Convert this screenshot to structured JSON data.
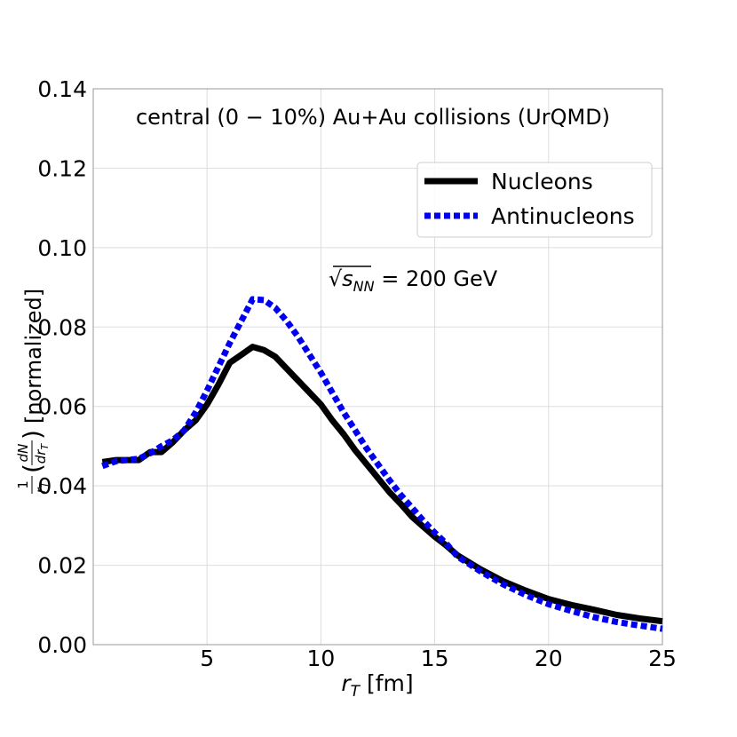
{
  "chart_data": {
    "type": "line",
    "title": "central (0 − 10%) Au+Au collisions (UrQMD)",
    "energy_prefix": "√",
    "energy_var": "s",
    "energy_sub": "NN",
    "energy_rest": " = 200 GeV",
    "xlabel_var": "r",
    "xlabel_sub": "T",
    "xlabel_unit": " [fm]",
    "ylabel": "(1/r_T)(dN/dr_T) [normalized]",
    "ylabel_suffix": "[normalized]",
    "xlim": [
      0,
      25
    ],
    "ylim": [
      0,
      0.14
    ],
    "x_ticks": [
      5,
      10,
      15,
      20,
      25
    ],
    "y_ticks": [
      0.0,
      0.02,
      0.04,
      0.06,
      0.08,
      0.1,
      0.12,
      0.14
    ],
    "y_tick_labels": [
      "0.00",
      "0.02",
      "0.04",
      "0.06",
      "0.08",
      "0.10",
      "0.12",
      "0.14"
    ],
    "grid": true,
    "legend_position": "upper-right",
    "series": [
      {
        "name": "Nucleons",
        "color": "#000000",
        "style": "solid",
        "x": [
          0.4,
          1,
          2,
          2.5,
          3,
          3.5,
          4,
          4.5,
          5,
          5.5,
          6,
          6.5,
          7,
          7.5,
          8,
          8.5,
          9,
          9.5,
          10,
          10.5,
          11,
          11.5,
          12,
          12.5,
          13,
          13.5,
          14,
          14.5,
          15,
          15.5,
          16,
          17,
          18,
          19,
          20,
          21,
          22,
          23,
          24,
          25
        ],
        "y": [
          0.046,
          0.0465,
          0.0465,
          0.0485,
          0.0485,
          0.051,
          0.054,
          0.0565,
          0.0605,
          0.0655,
          0.071,
          0.073,
          0.075,
          0.0742,
          0.0725,
          0.0695,
          0.0665,
          0.0635,
          0.0605,
          0.0565,
          0.053,
          0.049,
          0.0455,
          0.042,
          0.0385,
          0.0355,
          0.0322,
          0.0297,
          0.0272,
          0.025,
          0.0225,
          0.019,
          0.016,
          0.0136,
          0.0115,
          0.01,
          0.0088,
          0.0075,
          0.0066,
          0.0059
        ]
      },
      {
        "name": "Antinucleons",
        "color": "#0000ee",
        "style": "dotted",
        "x": [
          0.4,
          1,
          2,
          2.5,
          3,
          3.5,
          4,
          4.5,
          5,
          5.5,
          6,
          6.5,
          7,
          7.5,
          8,
          8.5,
          9,
          9.5,
          10,
          10.5,
          11,
          11.5,
          12,
          12.5,
          13,
          13.5,
          14,
          14.5,
          15,
          15.5,
          16,
          17,
          18,
          19,
          20,
          21,
          22,
          23,
          24,
          25
        ],
        "y": [
          0.045,
          0.0462,
          0.0468,
          0.0482,
          0.05,
          0.0515,
          0.054,
          0.0585,
          0.064,
          0.07,
          0.076,
          0.0815,
          0.087,
          0.0868,
          0.0848,
          0.0815,
          0.0775,
          0.073,
          0.0685,
          0.0635,
          0.0585,
          0.054,
          0.0495,
          0.0455,
          0.0415,
          0.0378,
          0.0345,
          0.0312,
          0.0282,
          0.0255,
          0.0222,
          0.0185,
          0.0152,
          0.0125,
          0.0102,
          0.0085,
          0.0069,
          0.0057,
          0.0048,
          0.004
        ]
      }
    ]
  }
}
